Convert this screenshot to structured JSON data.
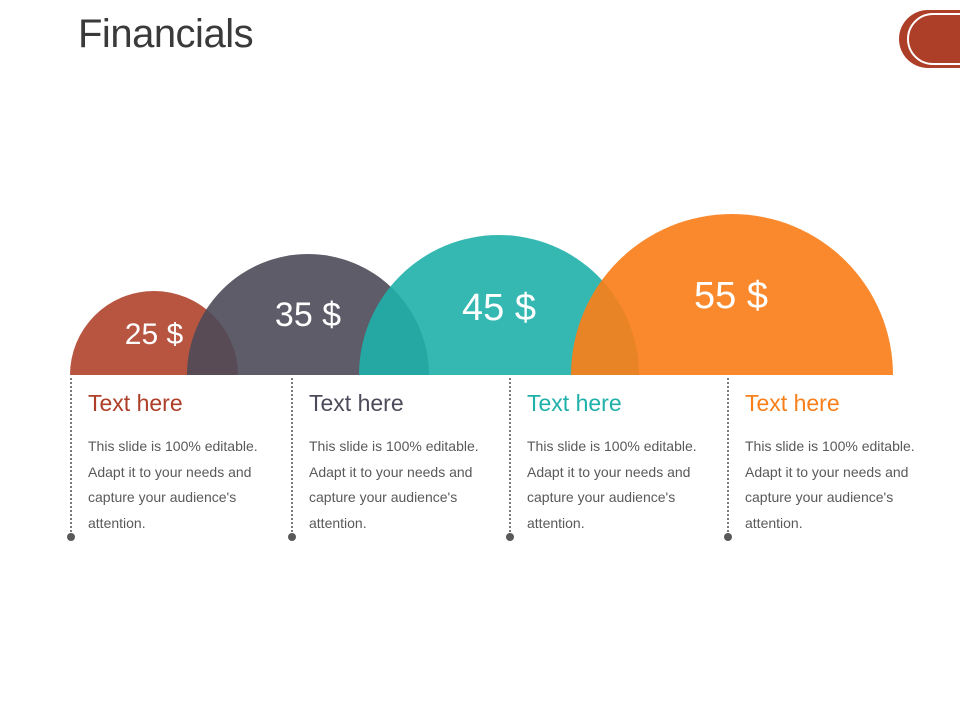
{
  "slide": {
    "title": "Financials"
  },
  "colors": {
    "accent": "#ad3e27",
    "items": [
      "#ad3e27",
      "#4e4a59",
      "#1fb0aa",
      "#f97f1a"
    ]
  },
  "items": [
    {
      "value": "25 $",
      "heading": "Text here",
      "body": "This slide is 100% editable. Adapt it to your needs and capture your audience's attention."
    },
    {
      "value": "35 $",
      "heading": "Text here",
      "body": "This slide is 100% editable. Adapt it to your needs and capture your audience's attention."
    },
    {
      "value": "45 $",
      "heading": "Text here",
      "body": "This slide is 100% editable. Adapt it to your needs and capture your audience's attention."
    },
    {
      "value": "55 $",
      "heading": "Text here",
      "body": "This slide is 100% editable. Adapt it to your needs and capture your audience's attention."
    }
  ]
}
